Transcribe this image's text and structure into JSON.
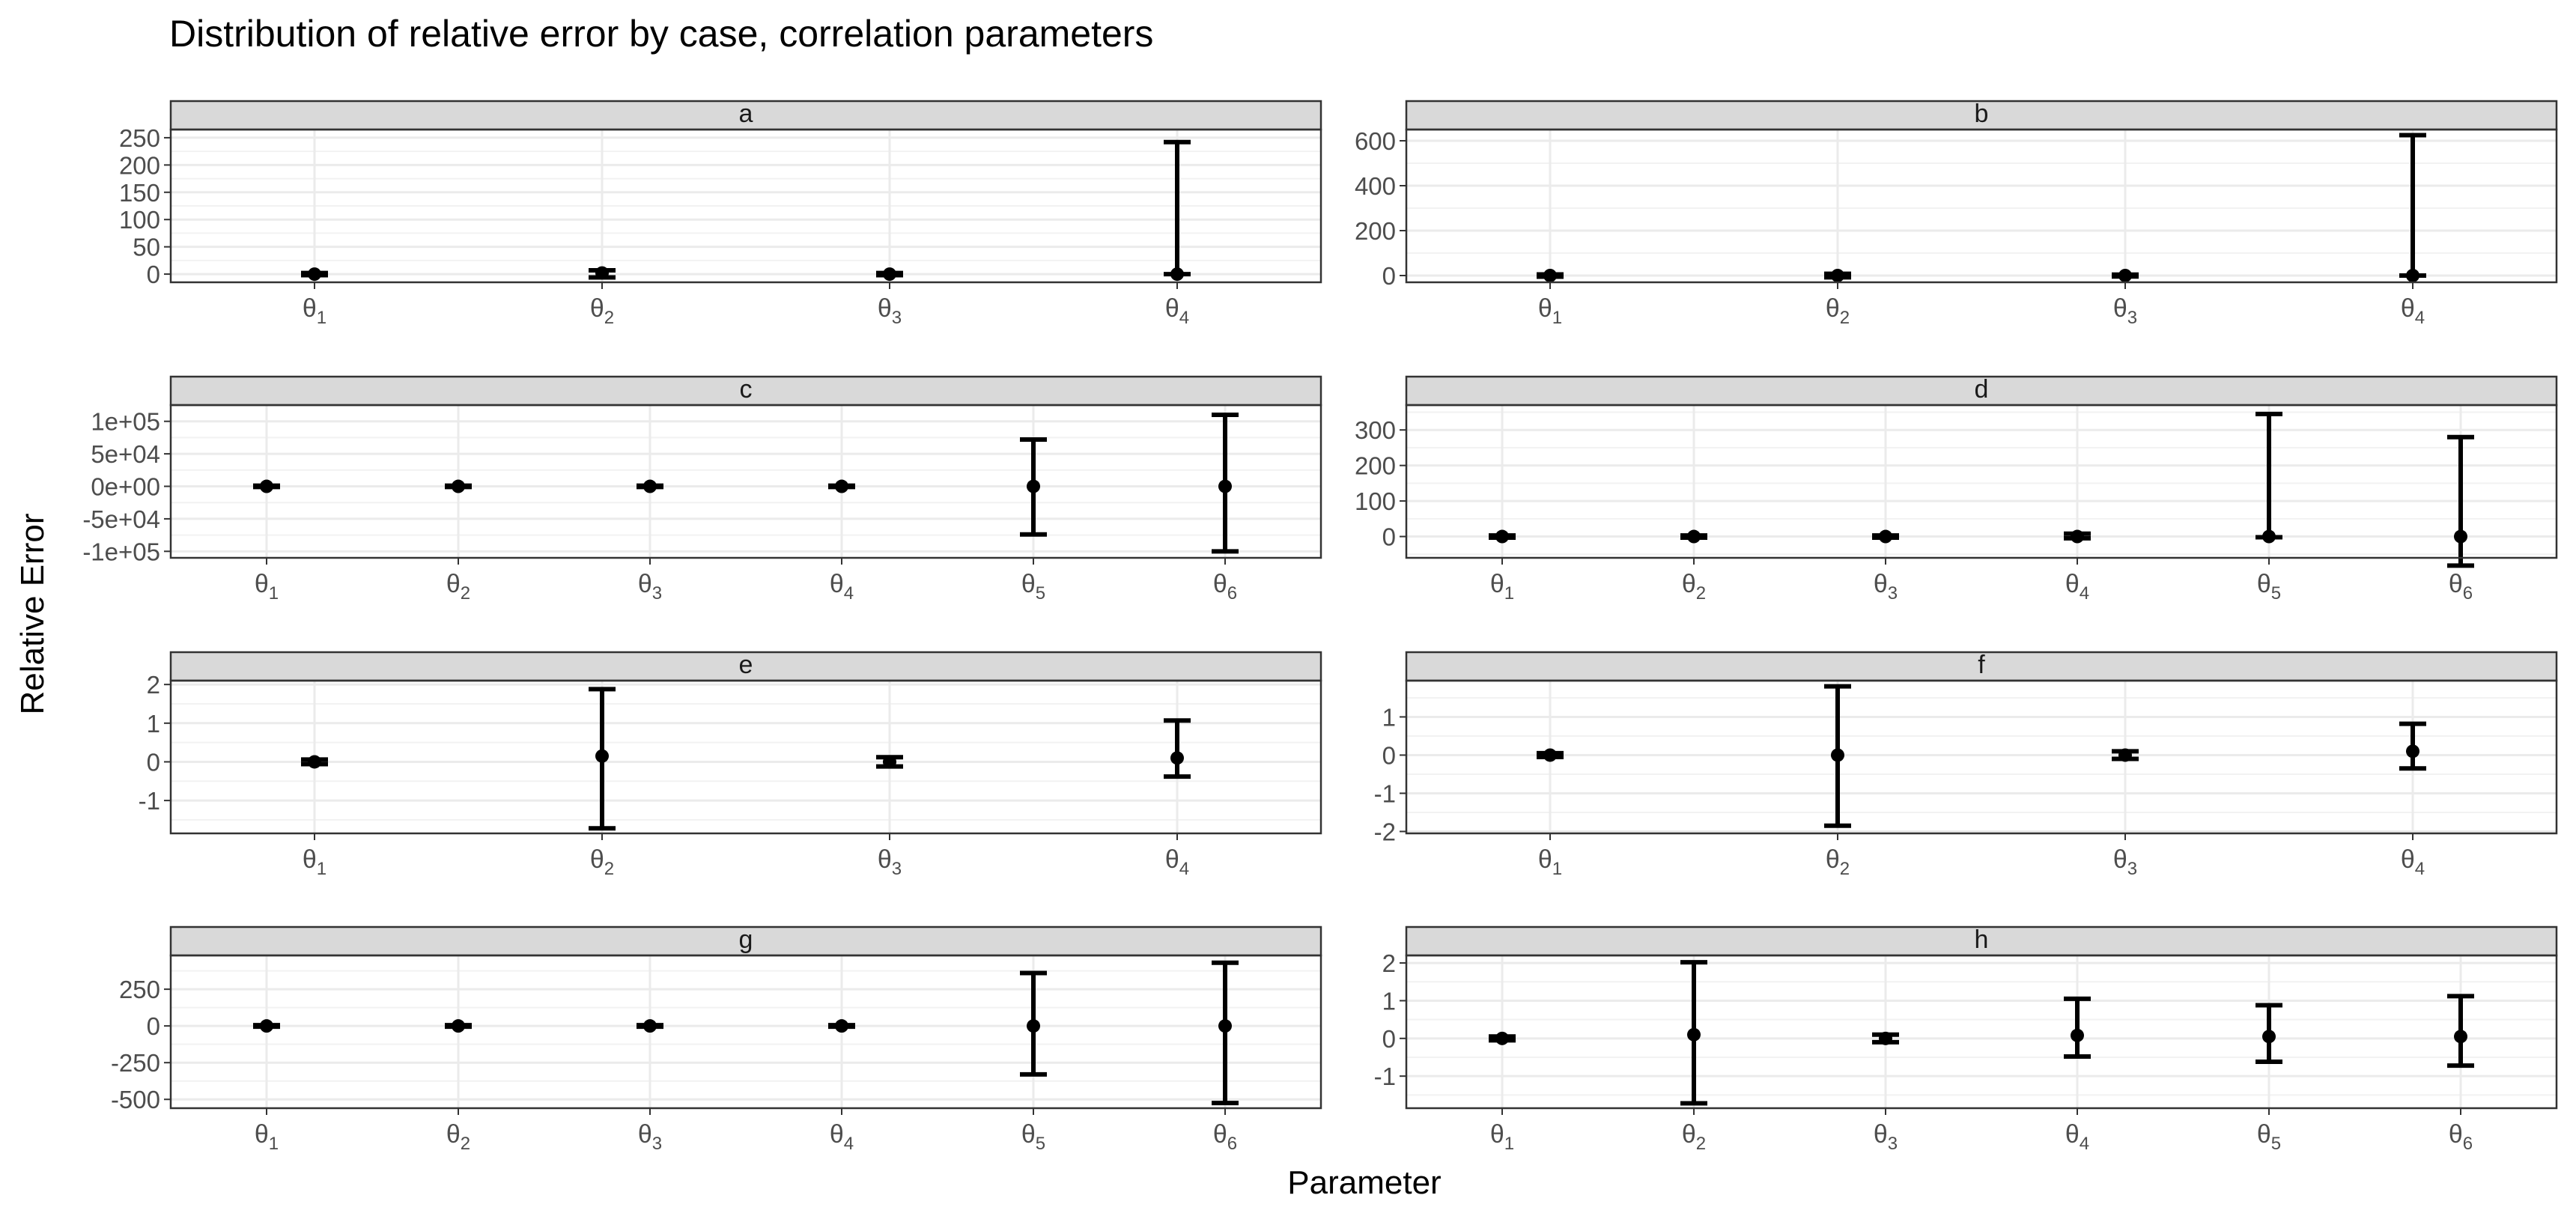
{
  "chart_data": {
    "type": "errorbar",
    "title": "Distribution of relative error by case, correlation parameters",
    "xlabel": "Parameter",
    "ylabel": "Relative Error",
    "grid": true,
    "panels": [
      {
        "name": "a",
        "ylim": [
          -15,
          265
        ],
        "yticks": [
          0,
          50,
          100,
          150,
          200,
          250
        ],
        "ytick_labels": [
          "0",
          "50",
          "100",
          "150",
          "200",
          "250"
        ],
        "categories": [
          "θ1",
          "θ2",
          "θ3",
          "θ4"
        ],
        "points": [
          {
            "y": 0,
            "lower": -2,
            "upper": 2
          },
          {
            "y": 2,
            "lower": -6,
            "upper": 7
          },
          {
            "y": 0,
            "lower": -2,
            "upper": 2
          },
          {
            "y": 0,
            "lower": 0,
            "upper": 242
          }
        ]
      },
      {
        "name": "b",
        "ylim": [
          -30,
          650
        ],
        "yticks": [
          0,
          200,
          400,
          600
        ],
        "ytick_labels": [
          "0",
          "200",
          "400",
          "600"
        ],
        "categories": [
          "θ1",
          "θ2",
          "θ3",
          "θ4"
        ],
        "points": [
          {
            "y": 0,
            "lower": -5,
            "upper": 5
          },
          {
            "y": 0,
            "lower": -8,
            "upper": 8
          },
          {
            "y": 0,
            "lower": -4,
            "upper": 4
          },
          {
            "y": 0,
            "lower": 0,
            "upper": 625
          }
        ]
      },
      {
        "name": "c",
        "ylim": [
          -110000,
          125000
        ],
        "yticks": [
          100000,
          50000,
          0,
          -50000,
          -100000
        ],
        "ytick_labels": [
          "1e+05",
          "5e+04",
          "0e+00",
          "-5e+04",
          "-1e+05"
        ],
        "categories": [
          "θ1",
          "θ2",
          "θ3",
          "θ4",
          "θ5",
          "θ6"
        ],
        "points": [
          {
            "y": 0,
            "lower": -1000,
            "upper": 1000
          },
          {
            "y": 0,
            "lower": -1000,
            "upper": 1000
          },
          {
            "y": 0,
            "lower": -1000,
            "upper": 1000
          },
          {
            "y": 0,
            "lower": -1000,
            "upper": 1000
          },
          {
            "y": 0,
            "lower": -74000,
            "upper": 72000
          },
          {
            "y": 0,
            "lower": -100000,
            "upper": 110000
          }
        ]
      },
      {
        "name": "d",
        "ylim": [
          -60,
          370
        ],
        "yticks": [
          0,
          100,
          200,
          300
        ],
        "ytick_labels": [
          "0",
          "100",
          "200",
          "300"
        ],
        "categories": [
          "θ1",
          "θ2",
          "θ3",
          "θ4",
          "θ5",
          "θ6"
        ],
        "points": [
          {
            "y": 0,
            "lower": -3,
            "upper": 3
          },
          {
            "y": 0,
            "lower": -3,
            "upper": 3
          },
          {
            "y": 0,
            "lower": -3,
            "upper": 3
          },
          {
            "y": 0,
            "lower": -5,
            "upper": 8
          },
          {
            "y": 0,
            "lower": -2,
            "upper": 345
          },
          {
            "y": 0,
            "lower": -82,
            "upper": 280
          }
        ]
      },
      {
        "name": "e",
        "ylim": [
          -1.85,
          2.1
        ],
        "yticks": [
          -1,
          0,
          1,
          2
        ],
        "ytick_labels": [
          "-1",
          "0",
          "1",
          "2"
        ],
        "categories": [
          "θ1",
          "θ2",
          "θ3",
          "θ4"
        ],
        "points": [
          {
            "y": 0,
            "lower": -0.06,
            "upper": 0.06
          },
          {
            "y": 0.15,
            "lower": -1.72,
            "upper": 1.88
          },
          {
            "y": 0,
            "lower": -0.12,
            "upper": 0.12
          },
          {
            "y": 0.1,
            "lower": -0.38,
            "upper": 1.07
          }
        ]
      },
      {
        "name": "f",
        "ylim": [
          -2.05,
          1.95
        ],
        "yticks": [
          -2,
          -1,
          0,
          1
        ],
        "ytick_labels": [
          "-2",
          "-1",
          "0",
          "1"
        ],
        "categories": [
          "θ1",
          "θ2",
          "θ3",
          "θ4"
        ],
        "points": [
          {
            "y": 0,
            "lower": -0.05,
            "upper": 0.05
          },
          {
            "y": 0,
            "lower": -1.85,
            "upper": 1.8
          },
          {
            "y": 0,
            "lower": -0.1,
            "upper": 0.1
          },
          {
            "y": 0.1,
            "lower": -0.35,
            "upper": 0.82
          }
        ]
      },
      {
        "name": "g",
        "ylim": [
          -560,
          480
        ],
        "yticks": [
          250,
          0,
          -250,
          -500
        ],
        "ytick_labels": [
          "250",
          "0",
          "-250",
          "-500"
        ],
        "categories": [
          "θ1",
          "θ2",
          "θ3",
          "θ4",
          "θ5",
          "θ6"
        ],
        "points": [
          {
            "y": 0,
            "lower": -5,
            "upper": 5
          },
          {
            "y": 0,
            "lower": -5,
            "upper": 5
          },
          {
            "y": 0,
            "lower": -5,
            "upper": 5
          },
          {
            "y": 0,
            "lower": -5,
            "upper": 5
          },
          {
            "y": 0,
            "lower": -330,
            "upper": 360
          },
          {
            "y": 0,
            "lower": -525,
            "upper": 430
          }
        ]
      },
      {
        "name": "h",
        "ylim": [
          -1.85,
          2.2
        ],
        "yticks": [
          -1,
          0,
          1,
          2
        ],
        "ytick_labels": [
          "-1",
          "0",
          "1",
          "2"
        ],
        "categories": [
          "θ1",
          "θ2",
          "θ3",
          "θ4",
          "θ5",
          "θ6"
        ],
        "points": [
          {
            "y": 0,
            "lower": -0.05,
            "upper": 0.05
          },
          {
            "y": 0.1,
            "lower": -1.72,
            "upper": 2.02
          },
          {
            "y": 0,
            "lower": -0.1,
            "upper": 0.1
          },
          {
            "y": 0.08,
            "lower": -0.48,
            "upper": 1.05
          },
          {
            "y": 0.05,
            "lower": -0.62,
            "upper": 0.88
          },
          {
            "y": 0.05,
            "lower": -0.72,
            "upper": 1.12
          }
        ]
      }
    ]
  }
}
